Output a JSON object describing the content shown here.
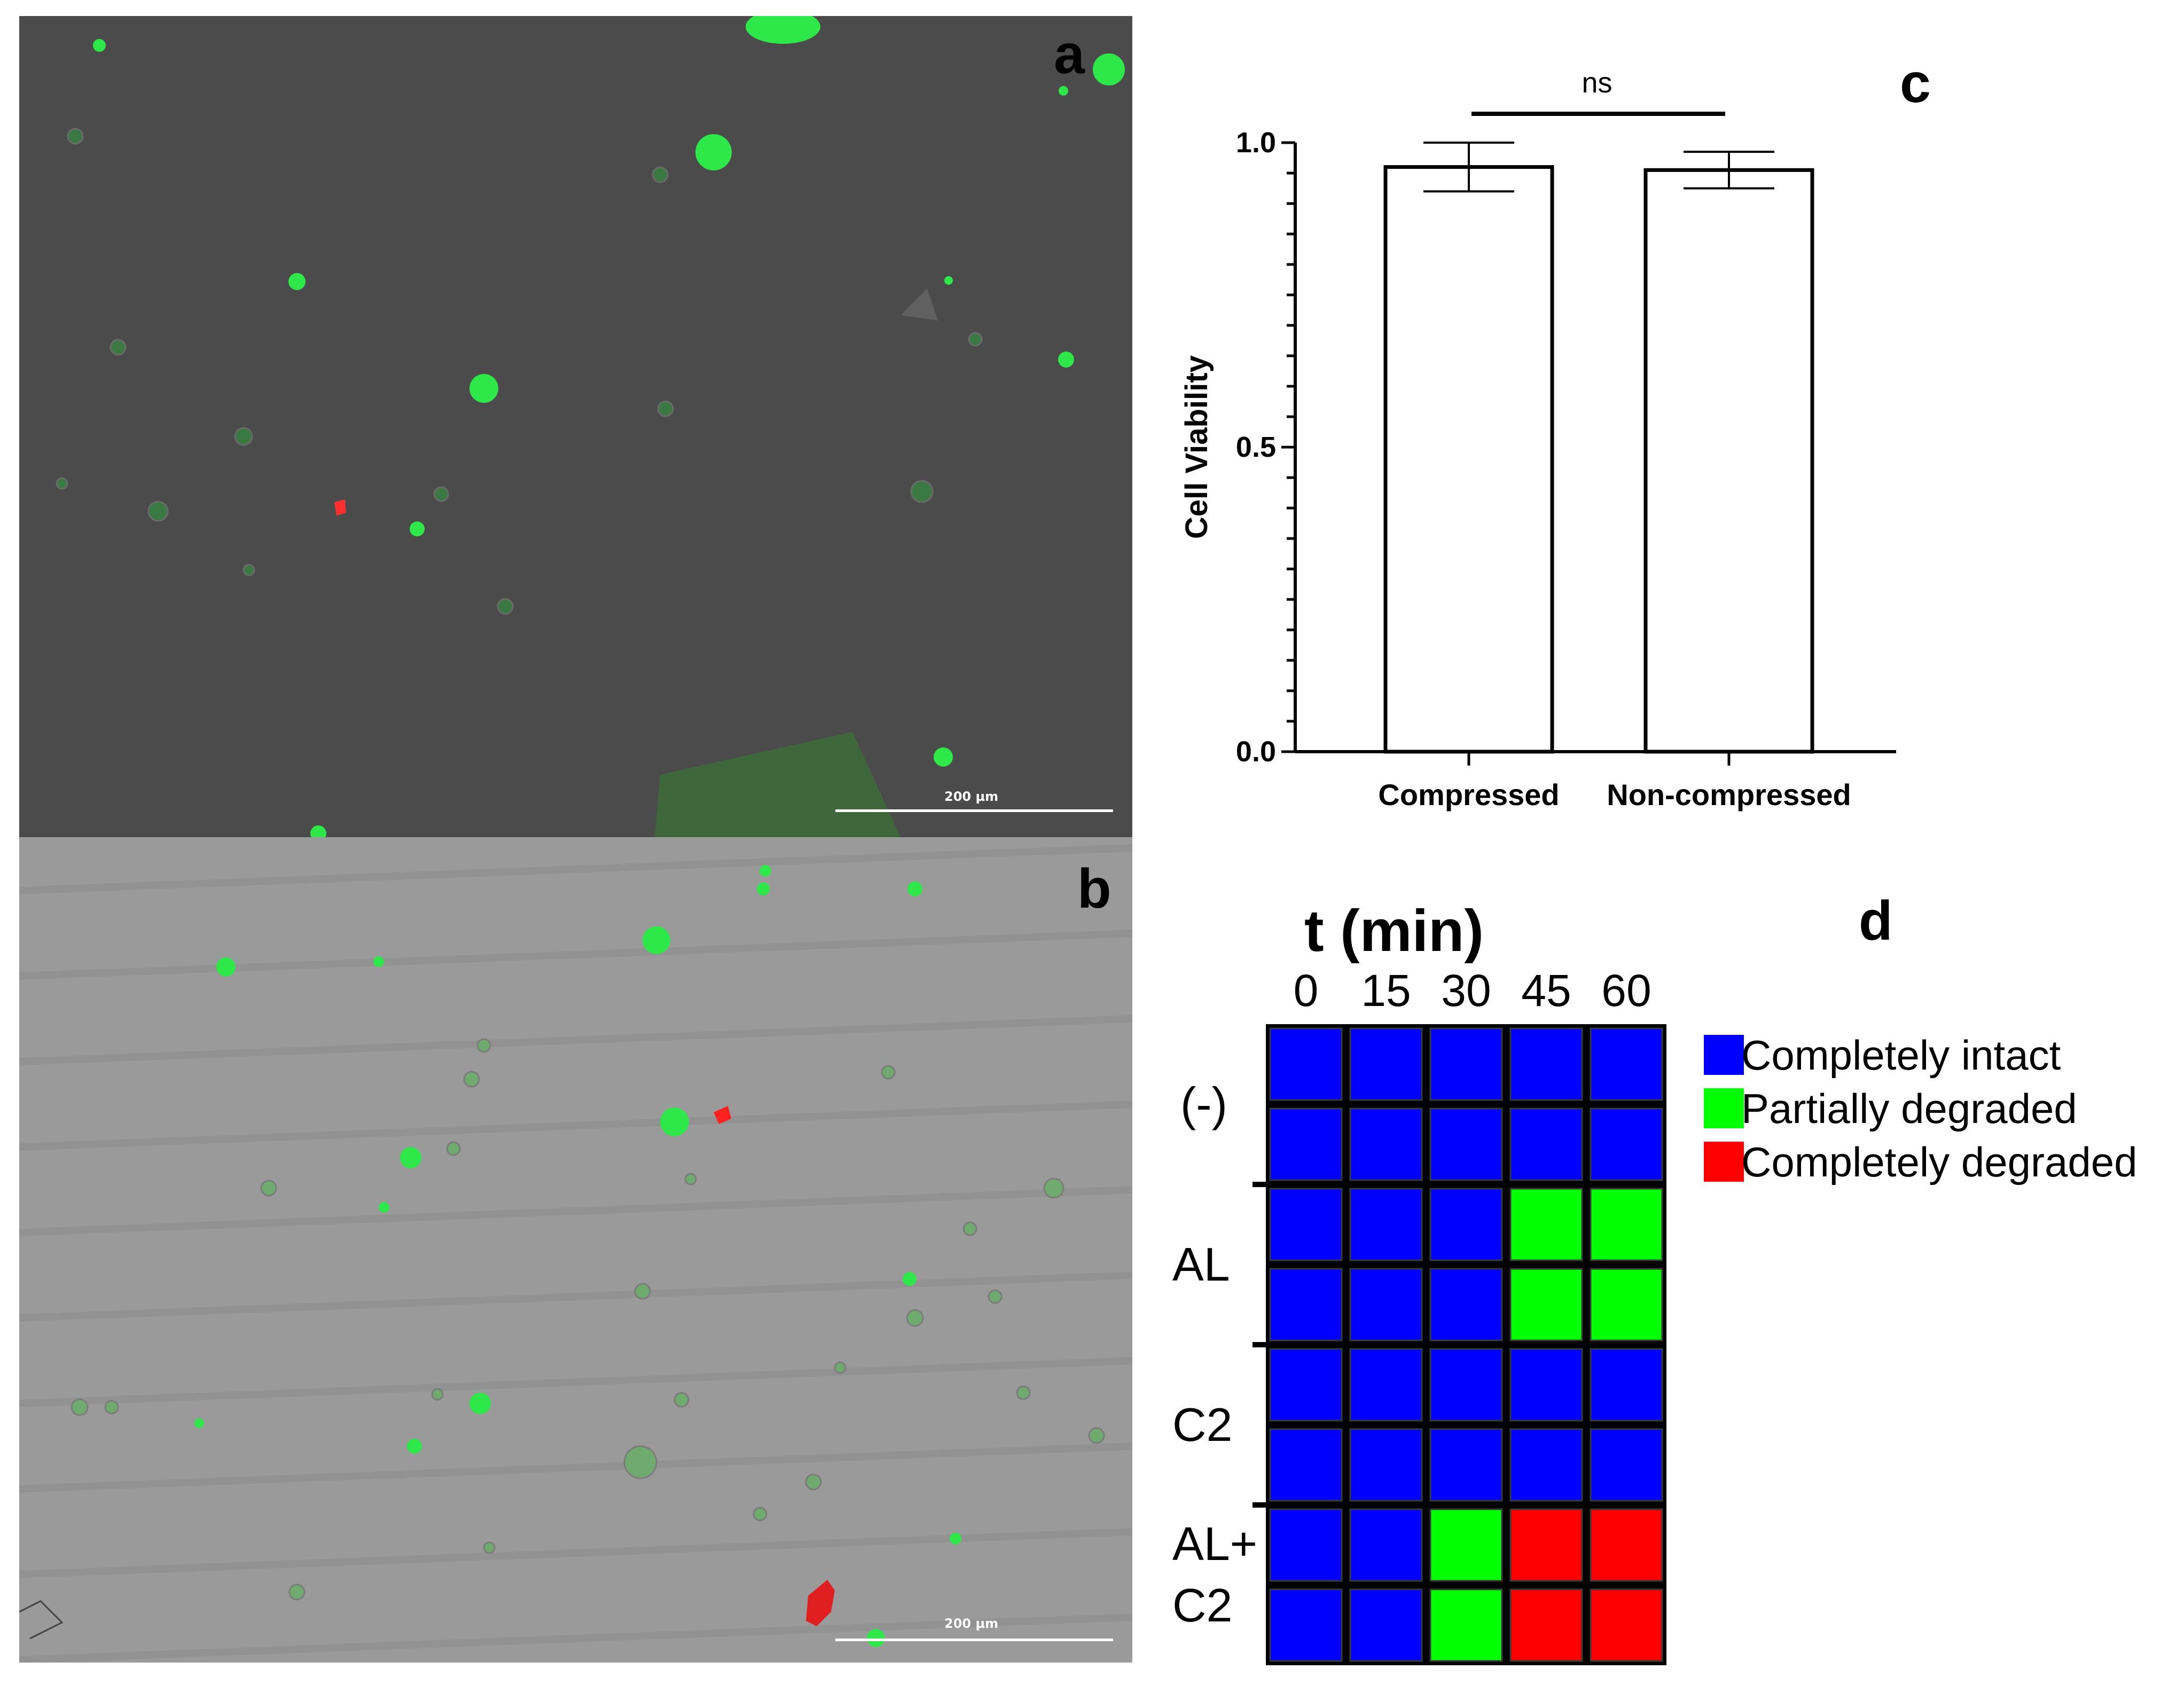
{
  "panels": {
    "a": {
      "letter": "a",
      "scale_bar_label": "200 µm"
    },
    "b": {
      "letter": "b",
      "scale_bar_label": "200 µm"
    },
    "c": {
      "letter": "c"
    },
    "d": {
      "letter": "d"
    }
  },
  "chart_data": [
    {
      "panel": "c",
      "type": "bar",
      "categories": [
        "Compressed",
        "Non-compressed"
      ],
      "values": [
        0.96,
        0.955
      ],
      "error": [
        0.04,
        0.03
      ],
      "ylabel": "Cell Viability",
      "ylim": [
        0,
        1.0
      ],
      "yticks": [
        "0.0",
        "0.5",
        "1.0"
      ],
      "annotation": "ns",
      "bar_fill": "#ffffff",
      "bar_edge": "#000000"
    },
    {
      "panel": "d",
      "type": "heatmap",
      "title": "t (min)",
      "columns": [
        "0",
        "15",
        "30",
        "45",
        "60"
      ],
      "groups": [
        {
          "label": "(-)",
          "rows": [
            [
              "intact",
              "intact",
              "intact",
              "intact",
              "intact"
            ],
            [
              "intact",
              "intact",
              "intact",
              "intact",
              "intact"
            ]
          ]
        },
        {
          "label": "AL",
          "rows": [
            [
              "intact",
              "intact",
              "intact",
              "partial",
              "partial"
            ],
            [
              "intact",
              "intact",
              "intact",
              "partial",
              "partial"
            ]
          ]
        },
        {
          "label": "C2",
          "rows": [
            [
              "intact",
              "intact",
              "intact",
              "intact",
              "intact"
            ],
            [
              "intact",
              "intact",
              "intact",
              "intact",
              "intact"
            ]
          ]
        },
        {
          "label_lines": [
            "AL+",
            "C2"
          ],
          "rows": [
            [
              "intact",
              "intact",
              "partial",
              "degraded",
              "degraded"
            ],
            [
              "intact",
              "intact",
              "partial",
              "degraded",
              "degraded"
            ]
          ]
        }
      ],
      "legend": [
        {
          "key": "intact",
          "label": "Completely intact",
          "color": "#0000ff"
        },
        {
          "key": "partial",
          "label": "Partially degraded",
          "color": "#00ff00"
        },
        {
          "key": "degraded",
          "label": "Completely degraded",
          "color": "#ff0000"
        }
      ]
    }
  ]
}
